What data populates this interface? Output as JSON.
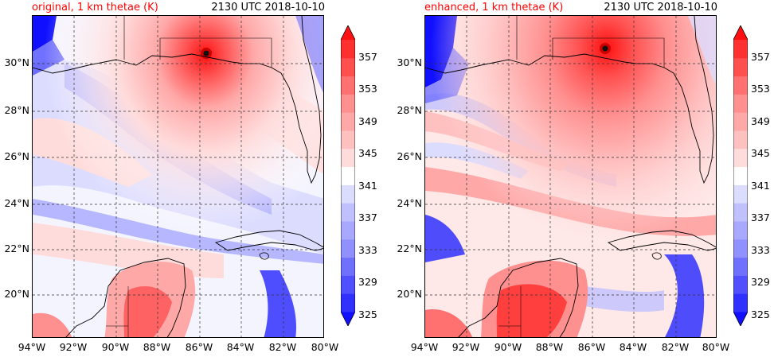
{
  "panels": [
    {
      "title": "original, 1 km thetae (K)",
      "title_color": "#ff0000",
      "time": "2130 UTC 2018-10-10",
      "variant": "original"
    },
    {
      "title": "enhanced, 1 km thetae (K)",
      "title_color": "#ff0000",
      "time": "2130 UTC 2018-10-10",
      "variant": "enhanced"
    }
  ],
  "lat_labels": [
    "30°N",
    "28°N",
    "26°N",
    "24°N",
    "22°N",
    "20°N"
  ],
  "lon_labels": [
    "94°W",
    "92°W",
    "90°W",
    "88°W",
    "86°W",
    "84°W",
    "82°W",
    "80°W"
  ],
  "colorbar": {
    "labels": [
      "357",
      "353",
      "349",
      "345",
      "341",
      "337",
      "333",
      "329",
      "325"
    ],
    "levels": [
      325,
      327,
      329,
      331,
      333,
      335,
      337,
      339,
      341,
      343,
      345,
      347,
      349,
      351,
      353,
      355,
      357
    ],
    "colors": [
      "#1010ff",
      "#3030ff",
      "#5050ff",
      "#7070ff",
      "#9090ff",
      "#a8a8ff",
      "#c0c0ff",
      "#dcdcff",
      "#ffffff",
      "#ffdcdc",
      "#ffc0c0",
      "#ffa8a8",
      "#ff9090",
      "#ff7070",
      "#ff5050",
      "#ff3030",
      "#ff1010"
    ],
    "units": "K"
  }
}
